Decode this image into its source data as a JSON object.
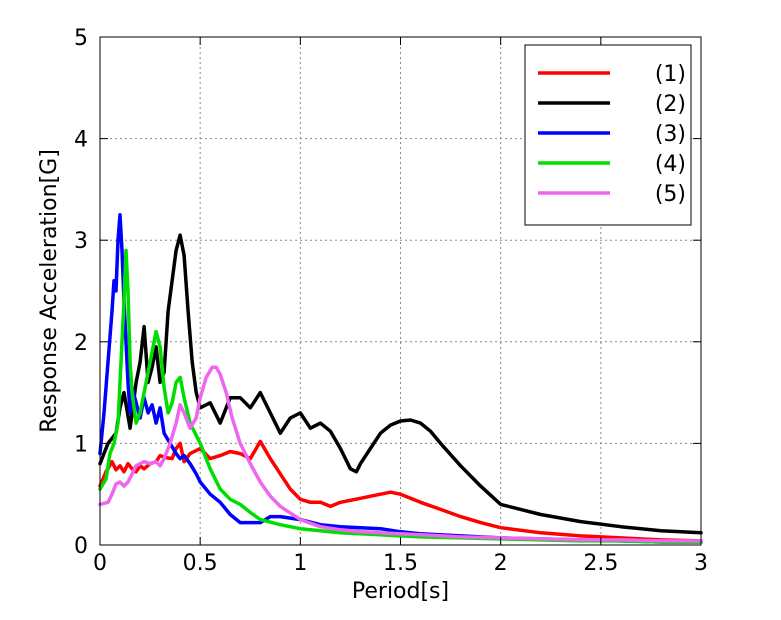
{
  "chart_data": {
    "type": "line",
    "title": "",
    "xlabel": "Period[s]",
    "ylabel": "Response Acceleration[G]",
    "xlim": [
      0,
      3
    ],
    "ylim": [
      0,
      5
    ],
    "x_ticks": [
      0,
      0.5,
      1,
      1.5,
      2,
      2.5,
      3
    ],
    "x_tick_labels": [
      "0",
      "0.5",
      "1",
      "1.5",
      "2",
      "2.5",
      "3"
    ],
    "y_ticks": [
      0,
      1,
      2,
      3,
      4,
      5
    ],
    "y_tick_labels": [
      "0",
      "1",
      "2",
      "3",
      "4",
      "5"
    ],
    "grid": true,
    "legend_position": "top-right",
    "series": [
      {
        "name": "(1)",
        "color": "#ff0000",
        "x": [
          0,
          0.03,
          0.06,
          0.08,
          0.1,
          0.12,
          0.14,
          0.16,
          0.18,
          0.2,
          0.22,
          0.25,
          0.28,
          0.3,
          0.33,
          0.36,
          0.38,
          0.4,
          0.42,
          0.45,
          0.5,
          0.55,
          0.6,
          0.65,
          0.7,
          0.75,
          0.8,
          0.85,
          0.9,
          0.95,
          1.0,
          1.05,
          1.1,
          1.15,
          1.2,
          1.3,
          1.4,
          1.45,
          1.5,
          1.6,
          1.7,
          1.8,
          1.9,
          2.0,
          2.2,
          2.4,
          2.6,
          2.8,
          3.0
        ],
        "y": [
          0.58,
          0.72,
          0.82,
          0.74,
          0.78,
          0.72,
          0.8,
          0.75,
          0.72,
          0.78,
          0.75,
          0.8,
          0.82,
          0.88,
          0.86,
          0.85,
          0.95,
          1.0,
          0.82,
          0.9,
          0.95,
          0.85,
          0.88,
          0.92,
          0.9,
          0.85,
          1.02,
          0.85,
          0.7,
          0.55,
          0.45,
          0.42,
          0.42,
          0.38,
          0.42,
          0.46,
          0.5,
          0.52,
          0.5,
          0.42,
          0.35,
          0.28,
          0.22,
          0.17,
          0.12,
          0.09,
          0.07,
          0.05,
          0.04
        ]
      },
      {
        "name": "(2)",
        "color": "#000000",
        "x": [
          0,
          0.04,
          0.08,
          0.1,
          0.12,
          0.15,
          0.18,
          0.2,
          0.22,
          0.24,
          0.26,
          0.28,
          0.3,
          0.32,
          0.34,
          0.36,
          0.38,
          0.4,
          0.42,
          0.44,
          0.46,
          0.48,
          0.5,
          0.55,
          0.6,
          0.65,
          0.7,
          0.75,
          0.8,
          0.85,
          0.9,
          0.95,
          1.0,
          1.05,
          1.1,
          1.15,
          1.2,
          1.25,
          1.28,
          1.3,
          1.35,
          1.4,
          1.45,
          1.5,
          1.55,
          1.6,
          1.65,
          1.7,
          1.8,
          1.9,
          2.0,
          2.2,
          2.4,
          2.6,
          2.8,
          3.0
        ],
        "y": [
          0.8,
          1.0,
          1.1,
          1.35,
          1.5,
          1.15,
          1.6,
          1.8,
          2.15,
          1.6,
          1.75,
          1.95,
          1.6,
          1.7,
          2.3,
          2.6,
          2.9,
          3.05,
          2.85,
          2.3,
          1.8,
          1.5,
          1.35,
          1.4,
          1.2,
          1.45,
          1.45,
          1.35,
          1.5,
          1.3,
          1.1,
          1.25,
          1.3,
          1.15,
          1.2,
          1.12,
          0.95,
          0.75,
          0.72,
          0.8,
          0.95,
          1.1,
          1.18,
          1.22,
          1.23,
          1.2,
          1.12,
          1.0,
          0.78,
          0.58,
          0.4,
          0.3,
          0.23,
          0.18,
          0.14,
          0.12
        ]
      },
      {
        "name": "(3)",
        "color": "#0000ff",
        "x": [
          0,
          0.02,
          0.04,
          0.06,
          0.07,
          0.08,
          0.09,
          0.1,
          0.11,
          0.12,
          0.13,
          0.14,
          0.15,
          0.16,
          0.18,
          0.2,
          0.22,
          0.24,
          0.26,
          0.28,
          0.3,
          0.32,
          0.35,
          0.38,
          0.4,
          0.42,
          0.45,
          0.48,
          0.5,
          0.55,
          0.6,
          0.65,
          0.7,
          0.75,
          0.8,
          0.85,
          0.9,
          1.0,
          1.1,
          1.2,
          1.3,
          1.4,
          1.5,
          1.6,
          1.8,
          2.0,
          2.2,
          2.4,
          2.6,
          2.8,
          3.0
        ],
        "y": [
          0.9,
          1.3,
          1.8,
          2.3,
          2.6,
          2.5,
          3.0,
          3.25,
          2.9,
          2.4,
          2.0,
          1.6,
          1.3,
          1.55,
          1.4,
          1.25,
          1.45,
          1.3,
          1.38,
          1.2,
          1.35,
          1.1,
          1.0,
          0.9,
          0.85,
          0.88,
          0.8,
          0.7,
          0.62,
          0.5,
          0.42,
          0.3,
          0.22,
          0.22,
          0.22,
          0.28,
          0.28,
          0.25,
          0.2,
          0.18,
          0.17,
          0.16,
          0.13,
          0.11,
          0.09,
          0.07,
          0.06,
          0.05,
          0.04,
          0.03,
          0.03
        ]
      },
      {
        "name": "(4)",
        "color": "#00dd00",
        "x": [
          0,
          0.03,
          0.05,
          0.07,
          0.09,
          0.1,
          0.11,
          0.12,
          0.13,
          0.14,
          0.15,
          0.16,
          0.18,
          0.2,
          0.22,
          0.24,
          0.26,
          0.28,
          0.3,
          0.32,
          0.34,
          0.36,
          0.38,
          0.4,
          0.42,
          0.45,
          0.5,
          0.55,
          0.6,
          0.65,
          0.7,
          0.75,
          0.8,
          0.9,
          1.0,
          1.1,
          1.2,
          1.4,
          1.6,
          1.8,
          2.0,
          2.2,
          2.4,
          2.6,
          2.8,
          3.0
        ],
        "y": [
          0.55,
          0.65,
          0.9,
          1.0,
          1.2,
          1.6,
          2.0,
          2.4,
          2.9,
          2.5,
          1.8,
          1.5,
          1.2,
          1.3,
          1.5,
          1.7,
          1.9,
          2.1,
          1.95,
          1.55,
          1.3,
          1.4,
          1.6,
          1.65,
          1.45,
          1.2,
          1.0,
          0.75,
          0.55,
          0.45,
          0.4,
          0.32,
          0.25,
          0.2,
          0.16,
          0.14,
          0.12,
          0.1,
          0.08,
          0.07,
          0.06,
          0.05,
          0.04,
          0.04,
          0.03,
          0.03
        ]
      },
      {
        "name": "(5)",
        "color": "#ee66ee",
        "x": [
          0,
          0.04,
          0.06,
          0.08,
          0.1,
          0.12,
          0.14,
          0.16,
          0.18,
          0.2,
          0.22,
          0.25,
          0.28,
          0.3,
          0.32,
          0.35,
          0.38,
          0.4,
          0.42,
          0.45,
          0.48,
          0.5,
          0.53,
          0.56,
          0.58,
          0.6,
          0.63,
          0.66,
          0.7,
          0.75,
          0.8,
          0.85,
          0.9,
          1.0,
          1.1,
          1.2,
          1.3,
          1.4,
          1.6,
          1.8,
          2.0,
          2.2,
          2.4,
          2.6,
          2.8,
          3.0
        ],
        "y": [
          0.4,
          0.42,
          0.5,
          0.6,
          0.62,
          0.58,
          0.62,
          0.7,
          0.78,
          0.8,
          0.82,
          0.8,
          0.82,
          0.78,
          0.85,
          1.0,
          1.2,
          1.38,
          1.3,
          1.15,
          1.25,
          1.45,
          1.65,
          1.75,
          1.75,
          1.68,
          1.5,
          1.25,
          1.0,
          0.8,
          0.62,
          0.48,
          0.38,
          0.25,
          0.18,
          0.15,
          0.13,
          0.12,
          0.1,
          0.08,
          0.07,
          0.06,
          0.05,
          0.05,
          0.04,
          0.04
        ]
      }
    ]
  }
}
